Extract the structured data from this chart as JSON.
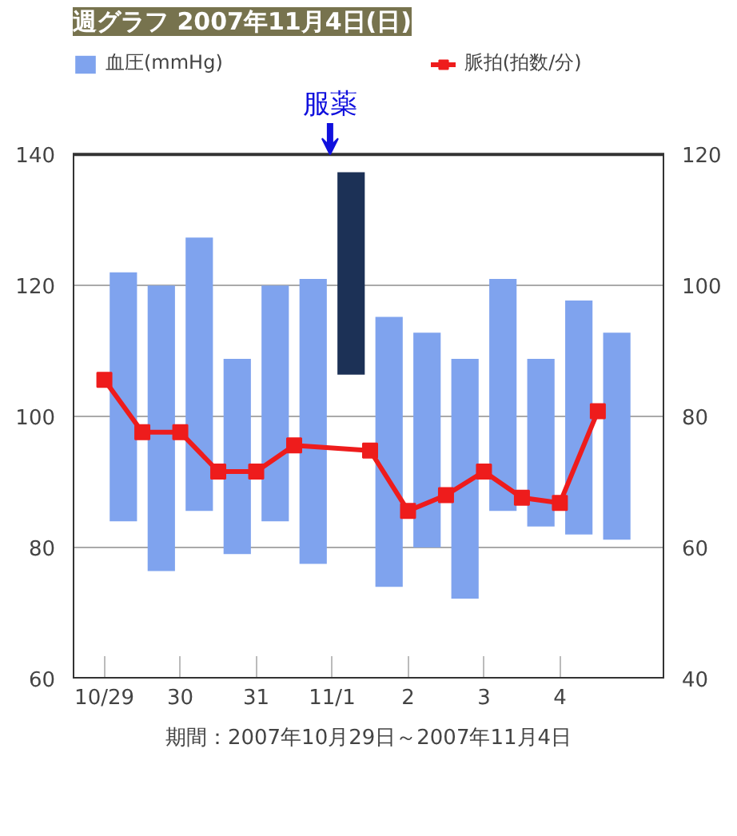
{
  "chart_data": {
    "type": "bar",
    "title": "週グラフ 2007年11月4日(日)",
    "x": [
      "2007-10-29T06:00",
      "2007-10-29T18:00",
      "2007-10-30T06:00",
      "2007-10-30T18:00",
      "2007-10-31T06:00",
      "2007-10-31T18:00",
      "2007-11-01T06:00",
      "2007-11-01T18:00",
      "2007-11-02T06:00",
      "2007-11-02T18:00",
      "2007-11-03T06:00",
      "2007-11-03T18:00",
      "2007-11-04T06:00",
      "2007-11-04T18:00"
    ],
    "xlim": [
      "2007-10-28T14:00",
      "2007-11-05T09:00"
    ],
    "xticks": [
      {
        "value": "2007-10-29",
        "label": "10/29"
      },
      {
        "value": "2007-10-30",
        "label": "30"
      },
      {
        "value": "2007-10-31",
        "label": "31"
      },
      {
        "value": "2007-11-01",
        "label": "11/1"
      },
      {
        "value": "2007-11-02",
        "label": "2"
      },
      {
        "value": "2007-11-03",
        "label": "3"
      },
      {
        "value": "2007-11-04",
        "label": "4"
      }
    ],
    "ylim": [
      60,
      140
    ],
    "yticks": [
      60,
      80,
      100,
      120,
      140
    ],
    "y2lim": [
      40,
      120
    ],
    "y2ticks": [
      40,
      60,
      80,
      100,
      120
    ],
    "series": [
      {
        "name": "血圧(mmHg)",
        "color": "#7fa3ee",
        "base": [
          84,
          76.4,
          85.6,
          79,
          84,
          77.5,
          106.4,
          74,
          80,
          72.2,
          85.6,
          83.2,
          82,
          81.2
        ],
        "colors": [
          "#7fa3ee",
          "#7fa3ee",
          "#7fa3ee",
          "#7fa3ee",
          "#7fa3ee",
          "#7fa3ee",
          "#1c3156",
          "#7fa3ee",
          "#7fa3ee",
          "#7fa3ee",
          "#7fa3ee",
          "#7fa3ee",
          "#7fa3ee",
          "#7fa3ee"
        ],
        "values": [
          38,
          43.6,
          41.7,
          29.8,
          36,
          43.5,
          30.9,
          41.2,
          32.8,
          36.6,
          35.4,
          25.6,
          35.7,
          31.6
        ]
      },
      {
        "name": "脈拍(拍数/分)",
        "type": "line",
        "axis": "y2",
        "color": "#ee1c1c",
        "x": [
          "2007-10-29T00:00",
          "2007-10-29T12:00",
          "2007-10-30T00:00",
          "2007-10-30T12:00",
          "2007-10-31T00:00",
          "2007-10-31T12:00",
          "2007-11-01T12:00",
          "2007-11-02T00:00",
          "2007-11-02T12:00",
          "2007-11-03T00:00",
          "2007-11-03T12:00",
          "2007-11-04T00:00",
          "2007-11-04T12:00"
        ],
        "values": [
          85.6,
          77.6,
          77.6,
          71.6,
          71.6,
          75.6,
          74.8,
          65.6,
          68,
          71.6,
          67.6,
          66.8,
          80.8
        ]
      }
    ],
    "marker": "square",
    "grid": "y",
    "legend": "top",
    "annotations": [
      "服薬",
      "期間：2007年10月29日～2007年11月4日"
    ]
  }
}
